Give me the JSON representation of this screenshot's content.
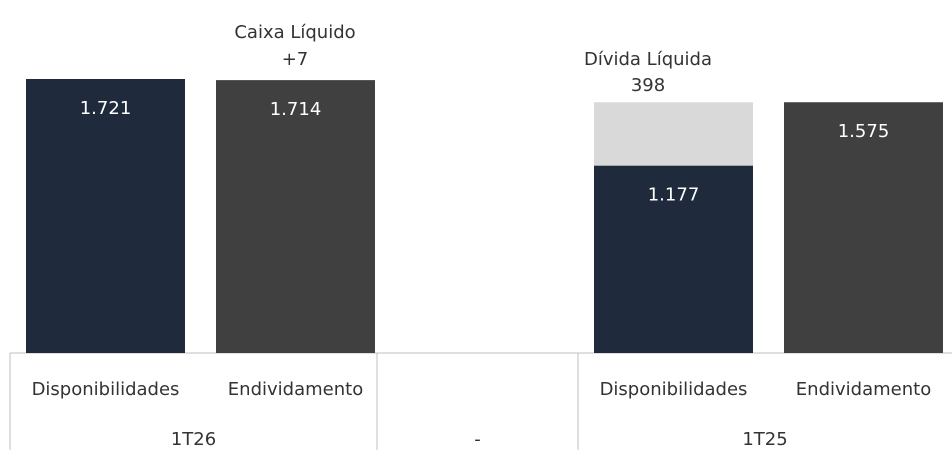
{
  "chart_data": {
    "type": "bar",
    "groups": [
      {
        "label": "1T26",
        "bars": [
          {
            "category": "Disponibilidades",
            "values": [
              1721
            ],
            "value_labels": [
              "1.721"
            ],
            "colors": [
              "#1f2a3c"
            ]
          },
          {
            "category": "Endividamento",
            "values": [
              1714
            ],
            "value_labels": [
              "1.714"
            ],
            "colors": [
              "#404040"
            ]
          }
        ]
      },
      {
        "label": "-",
        "bars": []
      },
      {
        "label": "1T25",
        "bars": [
          {
            "category": "Disponibilidades",
            "values": [
              1177,
              398
            ],
            "value_labels": [
              "1.177",
              null
            ],
            "colors": [
              "#1f2a3c",
              "#d9d9d9"
            ]
          },
          {
            "category": "Endividamento",
            "values": [
              1575
            ],
            "value_labels": [
              "1.575"
            ],
            "colors": [
              "#404040"
            ]
          }
        ]
      }
    ],
    "annotations": [
      {
        "text": "Caixa Líquido",
        "value": {
          "value": 7,
          "label": "+7"
        }
      },
      {
        "text": "Dívida Líquida",
        "value": 398
      }
    ]
  }
}
